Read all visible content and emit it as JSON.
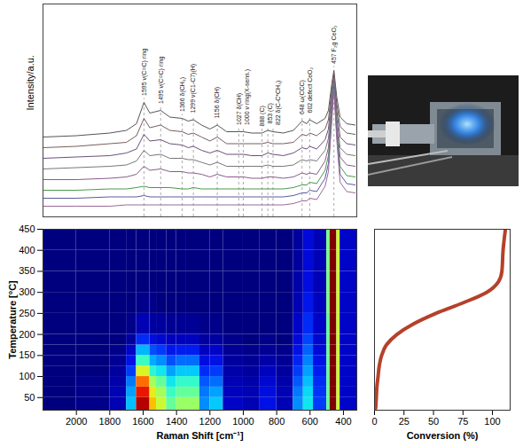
{
  "chart_data": [
    {
      "type": "line",
      "ylabel": "Intensity/a.u.",
      "tick_labels": false,
      "xlim": [
        2200,
        320
      ],
      "ylim": [
        0,
        16
      ],
      "x": [
        2200,
        2000,
        1800,
        1700,
        1640,
        1595,
        1560,
        1495,
        1440,
        1366,
        1330,
        1299,
        1250,
        1200,
        1156,
        1100,
        1027,
        1000,
        950,
        888,
        853,
        822,
        760,
        700,
        648,
        620,
        602,
        560,
        510,
        490,
        470,
        457,
        440,
        420,
        380,
        330
      ],
      "series": [
        {
          "color": "#555555",
          "values": [
            6.0,
            6.1,
            6.3,
            6.5,
            7.0,
            8.6,
            7.8,
            8.0,
            7.5,
            7.4,
            7.2,
            7.3,
            6.9,
            6.6,
            6.9,
            6.4,
            6.4,
            6.4,
            6.3,
            6.3,
            6.5,
            6.4,
            6.3,
            6.5,
            7.2,
            7.0,
            7.3,
            7.0,
            7.4,
            8.0,
            10.0,
            11.0,
            9.0,
            7.5,
            7.0,
            6.9
          ]
        },
        {
          "color": "#7a5c5c",
          "values": [
            5.2,
            5.3,
            5.5,
            5.6,
            6.1,
            7.4,
            6.7,
            6.9,
            6.5,
            6.4,
            6.2,
            6.3,
            6.0,
            5.7,
            6.0,
            5.5,
            5.5,
            5.5,
            5.5,
            5.5,
            5.6,
            5.5,
            5.5,
            5.6,
            6.2,
            6.1,
            6.3,
            6.1,
            6.6,
            7.3,
            9.6,
            10.8,
            8.5,
            6.8,
            6.3,
            6.2
          ]
        },
        {
          "color": "#6b4f7a",
          "values": [
            4.4,
            4.5,
            4.6,
            4.8,
            5.1,
            6.2,
            5.7,
            5.8,
            5.5,
            5.4,
            5.2,
            5.3,
            5.0,
            4.8,
            5.0,
            4.7,
            4.7,
            4.7,
            4.6,
            4.6,
            4.8,
            4.7,
            4.6,
            4.8,
            5.2,
            5.1,
            5.3,
            5.1,
            5.8,
            6.6,
            9.2,
            10.6,
            8.0,
            6.0,
            5.5,
            5.4
          ]
        },
        {
          "color": "#777777",
          "values": [
            3.6,
            3.7,
            3.8,
            3.9,
            4.2,
            5.0,
            4.6,
            4.7,
            4.4,
            4.4,
            4.3,
            4.3,
            4.1,
            3.9,
            4.1,
            3.8,
            3.8,
            3.8,
            3.8,
            3.8,
            3.9,
            3.8,
            3.8,
            3.9,
            4.3,
            4.2,
            4.3,
            4.2,
            5.0,
            5.9,
            8.8,
            10.4,
            7.5,
            5.2,
            4.7,
            4.6
          ]
        },
        {
          "color": "#8b5a8b",
          "values": [
            2.8,
            2.8,
            2.9,
            3.0,
            3.2,
            3.8,
            3.5,
            3.6,
            3.4,
            3.4,
            3.3,
            3.3,
            3.2,
            3.0,
            3.2,
            3.0,
            3.0,
            3.0,
            2.9,
            2.9,
            3.0,
            3.0,
            2.9,
            3.0,
            3.3,
            3.2,
            3.3,
            3.2,
            4.2,
            5.2,
            8.4,
            10.2,
            7.0,
            4.5,
            3.9,
            3.8
          ]
        },
        {
          "color": "#4a9a4a",
          "values": [
            2.0,
            2.0,
            2.1,
            2.1,
            2.2,
            2.3,
            2.2,
            2.2,
            2.2,
            2.1,
            2.1,
            2.2,
            2.1,
            2.1,
            2.1,
            2.1,
            2.1,
            2.1,
            2.1,
            2.1,
            2.1,
            2.1,
            2.1,
            2.2,
            2.4,
            2.4,
            2.6,
            2.5,
            3.5,
            4.6,
            8.0,
            10.0,
            6.6,
            3.8,
            3.1,
            3.0
          ]
        },
        {
          "color": "#5a5aa0",
          "values": [
            1.4,
            1.4,
            1.5,
            1.5,
            1.5,
            1.6,
            1.5,
            1.5,
            1.5,
            1.5,
            1.5,
            1.5,
            1.5,
            1.5,
            1.5,
            1.5,
            1.5,
            1.5,
            1.5,
            1.5,
            1.5,
            1.5,
            1.5,
            1.6,
            1.8,
            1.8,
            2.0,
            1.9,
            2.9,
            4.0,
            7.6,
            9.8,
            6.2,
            3.2,
            2.5,
            2.4
          ]
        },
        {
          "color": "#9a6a9a",
          "values": [
            0.8,
            0.8,
            0.8,
            0.9,
            0.9,
            0.9,
            0.9,
            0.9,
            0.9,
            0.9,
            0.9,
            0.9,
            0.9,
            0.9,
            0.9,
            0.9,
            0.9,
            0.9,
            0.9,
            0.9,
            0.9,
            0.9,
            0.9,
            1.0,
            1.2,
            1.2,
            1.4,
            1.3,
            2.3,
            3.4,
            7.2,
            9.6,
            5.8,
            2.6,
            1.9,
            1.8
          ]
        }
      ],
      "annotations": [
        {
          "x": 1595,
          "label": "1595 ν(C=C) ring"
        },
        {
          "x": 1495,
          "label": "1495 ν(C=C) ring"
        },
        {
          "x": 1366,
          "label": "1366 δ(CH₃)"
        },
        {
          "x": 1299,
          "label": "1299 ν(C1-C7)(H)"
        },
        {
          "x": 1156,
          "label": "1156 δ(CH)"
        },
        {
          "x": 1027,
          "label": "1027 δ(CH)"
        },
        {
          "x": 1000,
          "label": "1000 ν ring(X-sens.)"
        },
        {
          "x": 888,
          "label": "888 (C)"
        },
        {
          "x": 853,
          "label": "853 (C)"
        },
        {
          "x": 822,
          "label": "822 δ(C-C*CH₃)"
        },
        {
          "x": 648,
          "label": "648 ω(CCC)"
        },
        {
          "x": 602,
          "label": "602 defect CeO₂"
        },
        {
          "x": 457,
          "label": "457 F₂g CeO₂"
        }
      ]
    },
    {
      "type": "heatmap",
      "xlabel": "Raman Shift [cm⁻¹]",
      "ylabel": "Temperature [°C]",
      "xlim": [
        2200,
        320
      ],
      "ylim": [
        20,
        450
      ],
      "xticks": [
        2000,
        1800,
        1600,
        1400,
        1200,
        1000,
        800,
        600,
        400
      ],
      "yticks": [
        50,
        100,
        150,
        200,
        250,
        300,
        350,
        400,
        450
      ],
      "shift_edges": [
        2200,
        2000,
        1800,
        1700,
        1640,
        1560,
        1520,
        1460,
        1400,
        1340,
        1260,
        1200,
        1120,
        1000,
        900,
        800,
        700,
        640,
        580,
        500,
        480,
        440,
        420,
        320
      ],
      "temperature_edges": [
        20,
        50,
        75,
        100,
        125,
        150,
        175,
        200,
        250,
        300,
        350,
        400,
        450
      ],
      "intensity_by_shift": [
        [
          0.05,
          0.05,
          0.05,
          0.05,
          0.05,
          0.05,
          0.05,
          0.05,
          0.05,
          0.05,
          0.05,
          0.05
        ],
        [
          0.06,
          0.06,
          0.06,
          0.05,
          0.05,
          0.05,
          0.05,
          0.05,
          0.05,
          0.05,
          0.05,
          0.05
        ],
        [
          0.1,
          0.1,
          0.09,
          0.08,
          0.07,
          0.06,
          0.05,
          0.05,
          0.05,
          0.05,
          0.05,
          0.05
        ],
        [
          0.35,
          0.32,
          0.28,
          0.22,
          0.16,
          0.12,
          0.08,
          0.06,
          0.05,
          0.05,
          0.05,
          0.05
        ],
        [
          0.95,
          0.88,
          0.78,
          0.62,
          0.46,
          0.34,
          0.2,
          0.1,
          0.06,
          0.05,
          0.05,
          0.05
        ],
        [
          0.7,
          0.64,
          0.56,
          0.44,
          0.33,
          0.24,
          0.15,
          0.08,
          0.06,
          0.05,
          0.05,
          0.05
        ],
        [
          0.6,
          0.56,
          0.5,
          0.4,
          0.3,
          0.22,
          0.13,
          0.08,
          0.05,
          0.05,
          0.05,
          0.05
        ],
        [
          0.5,
          0.46,
          0.4,
          0.32,
          0.24,
          0.17,
          0.11,
          0.07,
          0.05,
          0.05,
          0.05,
          0.05
        ],
        [
          0.55,
          0.5,
          0.45,
          0.36,
          0.27,
          0.18,
          0.11,
          0.07,
          0.05,
          0.05,
          0.05,
          0.05
        ],
        [
          0.55,
          0.5,
          0.45,
          0.36,
          0.27,
          0.18,
          0.11,
          0.07,
          0.05,
          0.05,
          0.05,
          0.05
        ],
        [
          0.3,
          0.28,
          0.25,
          0.2,
          0.15,
          0.11,
          0.08,
          0.06,
          0.05,
          0.05,
          0.05,
          0.05
        ],
        [
          0.36,
          0.32,
          0.27,
          0.22,
          0.16,
          0.12,
          0.08,
          0.06,
          0.05,
          0.05,
          0.05,
          0.05
        ],
        [
          0.12,
          0.11,
          0.1,
          0.09,
          0.08,
          0.07,
          0.06,
          0.05,
          0.05,
          0.05,
          0.05,
          0.05
        ],
        [
          0.1,
          0.1,
          0.09,
          0.08,
          0.07,
          0.06,
          0.05,
          0.05,
          0.05,
          0.05,
          0.05,
          0.05
        ],
        [
          0.16,
          0.15,
          0.13,
          0.11,
          0.09,
          0.07,
          0.06,
          0.05,
          0.05,
          0.05,
          0.05,
          0.05
        ],
        [
          0.1,
          0.1,
          0.09,
          0.08,
          0.07,
          0.06,
          0.05,
          0.05,
          0.05,
          0.05,
          0.05,
          0.05
        ],
        [
          0.3,
          0.28,
          0.25,
          0.22,
          0.19,
          0.16,
          0.14,
          0.12,
          0.1,
          0.09,
          0.08,
          0.08
        ],
        [
          0.4,
          0.38,
          0.35,
          0.32,
          0.29,
          0.26,
          0.23,
          0.2,
          0.17,
          0.15,
          0.14,
          0.14
        ],
        [
          0.22,
          0.21,
          0.2,
          0.18,
          0.16,
          0.14,
          0.13,
          0.12,
          0.11,
          0.1,
          0.1,
          0.1
        ],
        [
          0.5,
          0.5,
          0.5,
          0.5,
          0.5,
          0.5,
          0.5,
          0.5,
          0.52,
          0.52,
          0.52,
          0.52
        ],
        [
          1.0,
          1.0,
          1.0,
          1.0,
          1.0,
          1.0,
          1.0,
          1.0,
          1.0,
          1.0,
          1.0,
          1.0
        ],
        [
          0.6,
          0.6,
          0.6,
          0.6,
          0.6,
          0.6,
          0.6,
          0.6,
          0.6,
          0.6,
          0.6,
          0.6
        ],
        [
          0.12,
          0.12,
          0.12,
          0.12,
          0.12,
          0.12,
          0.12,
          0.12,
          0.12,
          0.12,
          0.12,
          0.12
        ]
      ]
    },
    {
      "type": "line",
      "xlabel": "Conversion (%)",
      "tick_labels": "x",
      "color": "#b5412a",
      "xlim": [
        0,
        115
      ],
      "xticks": [
        0,
        25,
        50,
        75,
        100
      ],
      "ylim": [
        20,
        450
      ],
      "x": [
        1,
        1.5,
        2,
        3,
        4,
        6,
        10,
        19,
        33,
        52,
        75,
        95,
        105,
        108,
        109,
        111
      ],
      "y": [
        25,
        50,
        75,
        100,
        125,
        150,
        175,
        200,
        225,
        250,
        275,
        300,
        325,
        350,
        400,
        450
      ]
    }
  ]
}
